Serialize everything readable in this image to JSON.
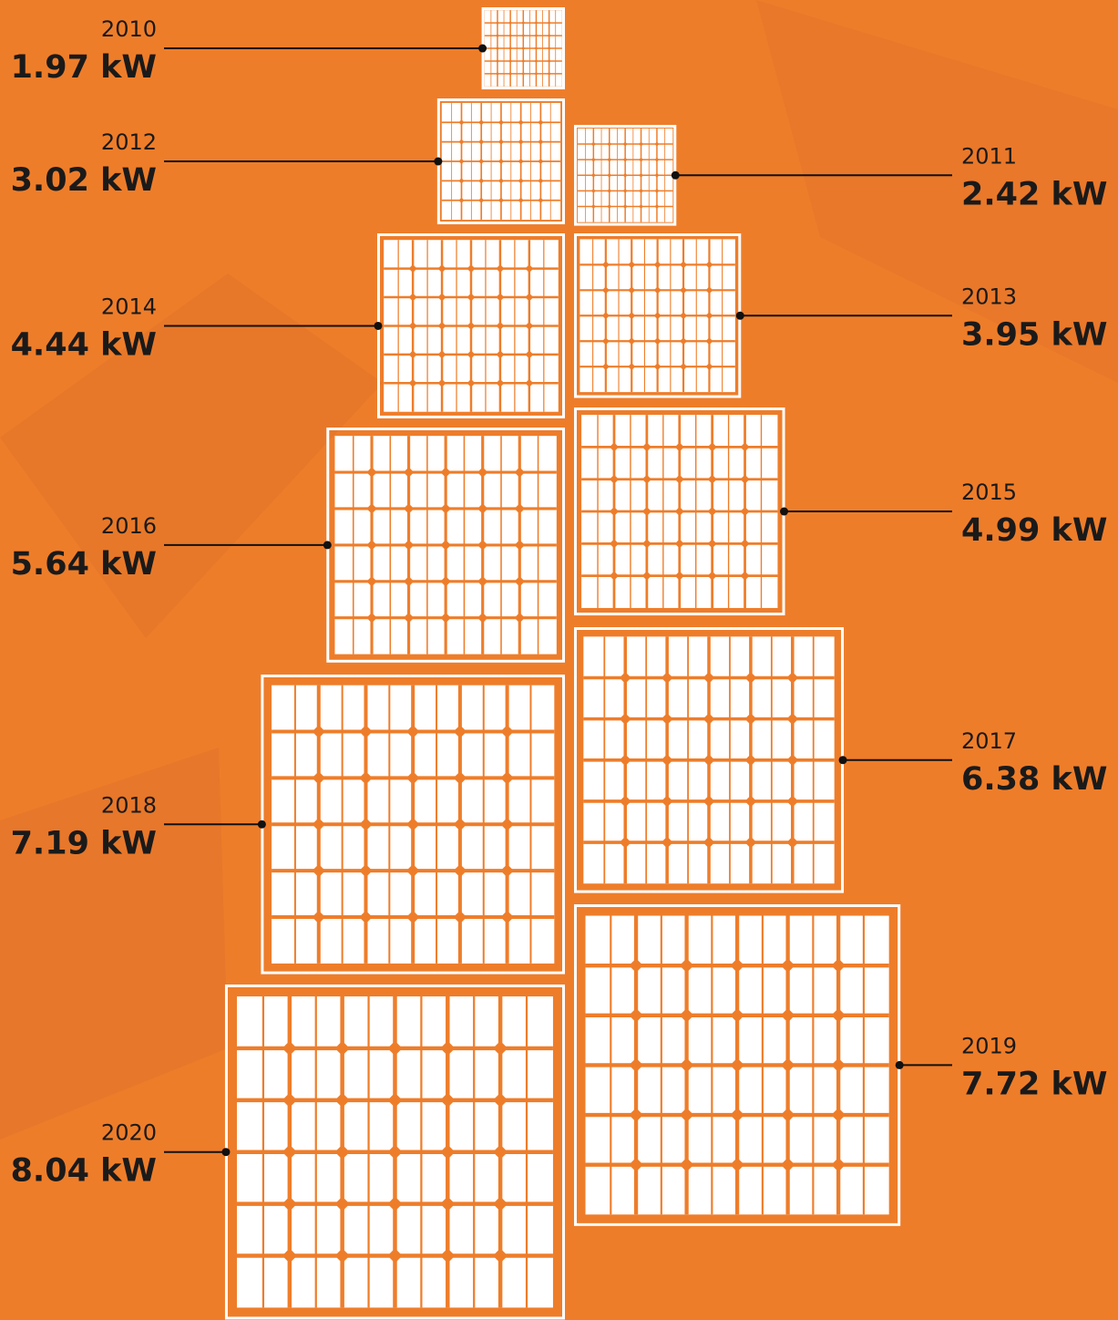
{
  "chart_data": {
    "type": "panel",
    "categories": [
      "2010",
      "2011",
      "2012",
      "2013",
      "2014",
      "2015",
      "2016",
      "2017",
      "2018",
      "2019",
      "2020"
    ],
    "values": [
      1.97,
      2.42,
      3.02,
      3.95,
      4.44,
      4.99,
      5.64,
      6.38,
      7.19,
      7.72,
      8.04
    ],
    "value_labels": [
      "1.97 kW",
      "2.42 kW",
      "3.02 kW",
      "3.95 kW",
      "4.44 kW",
      "4.99 kW",
      "5.64 kW",
      "6.38 kW",
      "7.19 kW",
      "7.72 kW",
      "8.04 kW"
    ],
    "color": "#ffffff"
  }
}
